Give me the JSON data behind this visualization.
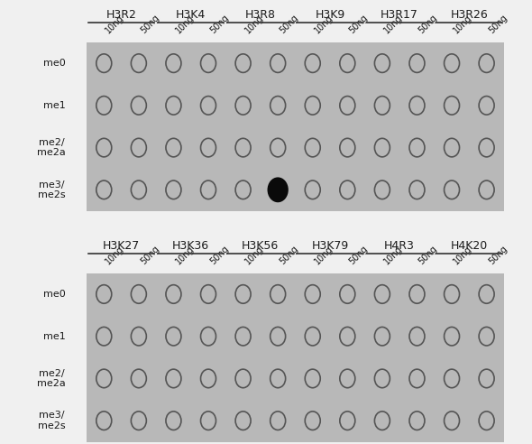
{
  "panel1_headers": [
    "H3R2",
    "H3K4",
    "H3R8",
    "H3K9",
    "H3R17",
    "H3R26"
  ],
  "panel2_headers": [
    "H3K27",
    "H3K36",
    "H3K56",
    "H3K79",
    "H4R3",
    "H4K20"
  ],
  "row_labels": [
    "me0",
    "me1",
    "me2/\nme2a",
    "me3/\nme2s"
  ],
  "conc_labels": [
    "10ng",
    "50ng"
  ],
  "n_groups": 6,
  "n_conc": 2,
  "n_rows": 4,
  "black_dot": {
    "panel": 0,
    "row": 3,
    "group": 2,
    "conc": 1
  },
  "bg_color_panel": "#b8b8b8",
  "bg_color_fig": "#f0f0f0",
  "circle_edge_color": "#555555",
  "circle_face_color": "none",
  "black_dot_color": "#0a0a0a",
  "header_line_color": "#333333",
  "text_color": "#1a1a1a",
  "circle_lw": 1.2,
  "black_dot_lw": 1.2,
  "header_fontsize": 9,
  "conc_fontsize": 7,
  "row_label_fontsize": 8
}
